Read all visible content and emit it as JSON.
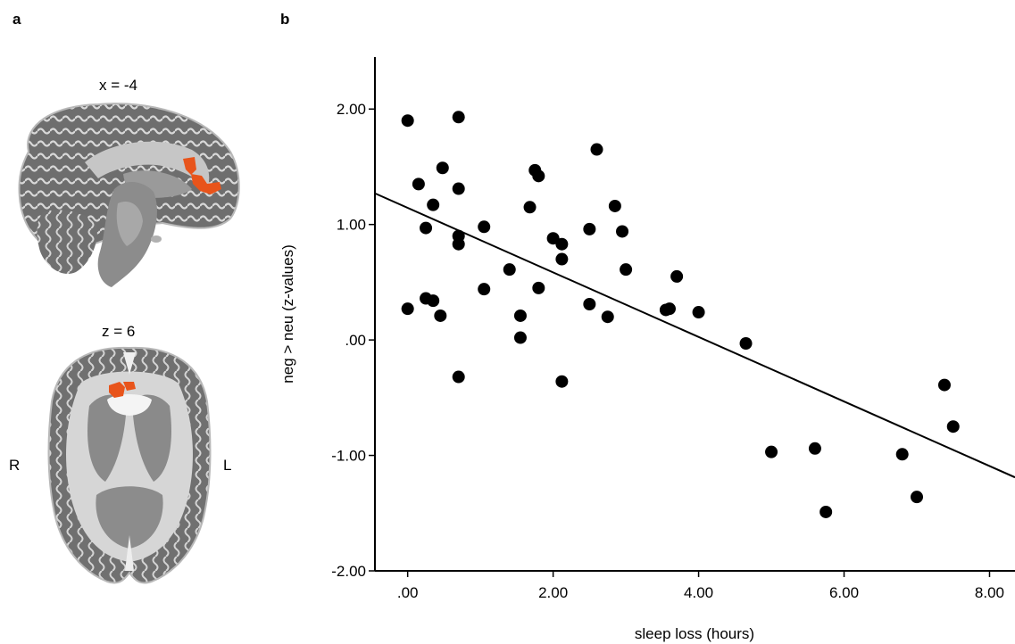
{
  "panel_a": {
    "letter": "a",
    "sagittal_label": "x = -4",
    "axial_label": "z = 6",
    "right_label": "R",
    "left_label": "L",
    "activation_color": "#e8541b"
  },
  "panel_b": {
    "letter": "b"
  },
  "chart_data": {
    "type": "scatter",
    "xlabel": "sleep loss (hours)",
    "ylabel": "neg > neu (z-values)",
    "xlim": [
      -0.45,
      8.35
    ],
    "ylim": [
      -2.0,
      2.45
    ],
    "x_ticks": [
      0,
      2,
      4,
      6,
      8
    ],
    "x_tick_labels": [
      ".00",
      "2.00",
      "4.00",
      "6.00",
      "8.00"
    ],
    "y_ticks": [
      2,
      1,
      0,
      -1,
      -2
    ],
    "y_tick_labels": [
      "2.00",
      "1.00",
      ".00",
      "-1.00",
      "-2.00"
    ],
    "points": [
      [
        0.0,
        1.9
      ],
      [
        0.0,
        0.27
      ],
      [
        0.15,
        1.35
      ],
      [
        0.25,
        0.97
      ],
      [
        0.25,
        0.36
      ],
      [
        0.35,
        1.17
      ],
      [
        0.35,
        0.34
      ],
      [
        0.45,
        0.21
      ],
      [
        0.48,
        1.49
      ],
      [
        0.7,
        1.93
      ],
      [
        0.7,
        1.31
      ],
      [
        0.7,
        0.9
      ],
      [
        0.7,
        0.83
      ],
      [
        0.7,
        -0.32
      ],
      [
        1.05,
        0.98
      ],
      [
        1.05,
        0.44
      ],
      [
        1.4,
        0.61
      ],
      [
        1.55,
        0.21
      ],
      [
        1.55,
        0.02
      ],
      [
        1.68,
        1.15
      ],
      [
        1.75,
        1.47
      ],
      [
        1.8,
        1.42
      ],
      [
        1.8,
        0.45
      ],
      [
        2.0,
        0.88
      ],
      [
        2.12,
        0.83
      ],
      [
        2.12,
        0.7
      ],
      [
        2.12,
        -0.36
      ],
      [
        2.5,
        0.96
      ],
      [
        2.5,
        0.31
      ],
      [
        2.6,
        1.65
      ],
      [
        2.75,
        0.2
      ],
      [
        2.85,
        1.16
      ],
      [
        2.95,
        0.94
      ],
      [
        3.0,
        0.61
      ],
      [
        3.55,
        0.26
      ],
      [
        3.6,
        0.27
      ],
      [
        3.7,
        0.55
      ],
      [
        4.0,
        0.24
      ],
      [
        4.65,
        -0.03
      ],
      [
        5.0,
        -0.97
      ],
      [
        5.6,
        -0.94
      ],
      [
        5.75,
        -1.49
      ],
      [
        6.8,
        -0.99
      ],
      [
        7.0,
        -1.36
      ],
      [
        7.38,
        -0.39
      ],
      [
        7.5,
        -0.75
      ]
    ],
    "fit_line": {
      "x": [
        -0.45,
        8.35
      ],
      "y": [
        1.27,
        -1.19
      ]
    },
    "marker_color": "#000000",
    "line_color": "#000000"
  }
}
